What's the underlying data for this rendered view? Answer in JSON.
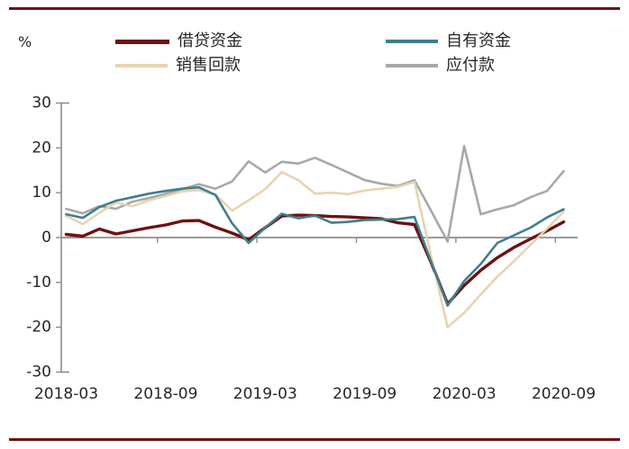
{
  "page": {
    "unit_label": "%"
  },
  "decorations": {
    "rule_color": "#6e1112"
  },
  "chart_data": {
    "type": "line",
    "title": "",
    "xlabel": "",
    "ylabel": "%",
    "ylim": [
      -30,
      30
    ],
    "yticks": [
      30,
      20,
      10,
      0,
      -10,
      -20,
      -30
    ],
    "x_tick_labels": [
      "2018-03",
      "2018-09",
      "2019-03",
      "2019-09",
      "2020-03",
      "2020-09"
    ],
    "grid": false,
    "legend_position": "top",
    "axis_color": "#8c8c8c",
    "text_color": "#262626",
    "x": [
      "2018-03",
      "2018-04",
      "2018-05",
      "2018-06",
      "2018-07",
      "2018-08",
      "2018-09",
      "2018-10",
      "2018-11",
      "2018-12",
      "2019-01",
      "2019-02",
      "2019-03",
      "2019-04",
      "2019-05",
      "2019-06",
      "2019-07",
      "2019-08",
      "2019-09",
      "2019-10",
      "2019-11",
      "2019-12",
      "2020-01",
      "2020-02",
      "2020-03",
      "2020-04",
      "2020-05",
      "2020-06",
      "2020-07",
      "2020-08",
      "2020-09"
    ],
    "series": [
      {
        "id": "borrowed-funds",
        "name": "借贷资金",
        "color": "#6e1112",
        "line_width": 3.4,
        "values": [
          0.7,
          0.3,
          1.9,
          0.8,
          1.5,
          2.2,
          2.8,
          3.7,
          3.8,
          2.3,
          1.0,
          -0.5,
          2.2,
          4.8,
          5.0,
          4.9,
          4.7,
          4.6,
          4.4,
          4.2,
          3.3,
          2.9,
          -5.5,
          -14.8,
          -10.7,
          -7.3,
          -4.5,
          -2.2,
          -0.3,
          1.5,
          3.5
        ]
      },
      {
        "id": "own-funds",
        "name": "自有资金",
        "color": "#3e7f8e",
        "line_width": 2.6,
        "values": [
          5.2,
          4.4,
          6.8,
          8.2,
          9.0,
          9.8,
          10.4,
          10.9,
          11.2,
          9.5,
          3.2,
          -1.2,
          2.2,
          5.3,
          4.3,
          4.9,
          3.3,
          3.5,
          3.9,
          4.0,
          4.1,
          4.6,
          -5.3,
          -15.2,
          -9.7,
          -5.9,
          -1.2,
          0.5,
          2.2,
          4.5,
          6.3
        ]
      },
      {
        "id": "sales-receipts",
        "name": "销售回款",
        "color": "#e9d3b1",
        "line_width": 2.6,
        "values": [
          4.8,
          3.0,
          5.5,
          7.8,
          7.0,
          8.3,
          9.3,
          10.3,
          10.6,
          9.6,
          6.0,
          8.3,
          10.8,
          14.6,
          12.8,
          9.8,
          10.0,
          9.7,
          10.5,
          10.9,
          11.3,
          12.4,
          -4.0,
          -20.0,
          -16.8,
          -12.7,
          -8.7,
          -5.3,
          -1.6,
          2.0,
          5.8
        ]
      },
      {
        "id": "payables",
        "name": "应付款",
        "color": "#a8a8a8",
        "line_width": 2.6,
        "values": [
          6.4,
          5.4,
          7.0,
          6.4,
          8.0,
          8.8,
          9.8,
          10.8,
          11.9,
          10.9,
          12.5,
          17.0,
          14.5,
          16.9,
          16.5,
          17.8,
          16.2,
          14.5,
          12.8,
          12.0,
          11.5,
          12.8,
          6.0,
          -0.9,
          20.4,
          5.2,
          6.3,
          7.2,
          9.0,
          10.4,
          14.8
        ]
      }
    ]
  }
}
